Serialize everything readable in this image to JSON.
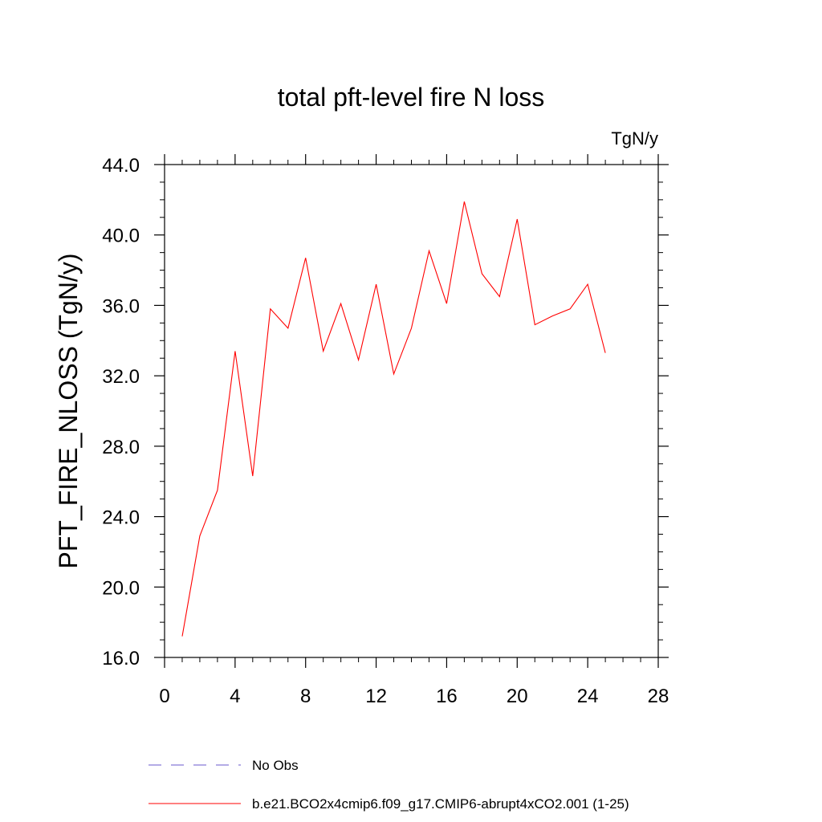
{
  "chart_data": {
    "type": "line",
    "title": "total pft-level fire N loss",
    "units": "TgN/y",
    "xlabel": "",
    "ylabel": "PFT_FIRE_NLOSS  (TgN/y)",
    "xlim": [
      0,
      28
    ],
    "ylim": [
      16,
      44
    ],
    "x_major_ticks": [
      0,
      4,
      8,
      12,
      16,
      20,
      24,
      28
    ],
    "x_tick_labels": [
      "0",
      "4",
      "8",
      "12",
      "16",
      "20",
      "24",
      "28"
    ],
    "y_major_ticks": [
      16,
      20,
      24,
      28,
      32,
      36,
      40,
      44
    ],
    "y_tick_labels": [
      "16.0",
      "20.0",
      "24.0",
      "28.0",
      "32.0",
      "36.0",
      "40.0",
      "44.0"
    ],
    "series": [
      {
        "name": "b.e21.BCO2x4cmip6.f09_g17.CMIP6-abrupt4xCO2.001 (1-25)",
        "color": "#ff0000",
        "x": [
          1,
          2,
          3,
          4,
          5,
          6,
          7,
          8,
          9,
          10,
          11,
          12,
          13,
          14,
          15,
          16,
          17,
          18,
          19,
          20,
          21,
          22,
          23,
          24,
          25
        ],
        "values": [
          17.2,
          22.9,
          25.5,
          33.4,
          26.3,
          35.8,
          34.7,
          38.7,
          33.4,
          36.1,
          32.9,
          37.2,
          32.1,
          34.7,
          39.1,
          36.1,
          41.9,
          37.8,
          36.5,
          40.9,
          34.9,
          35.4,
          35.8,
          37.2,
          33.3
        ]
      }
    ],
    "legend": [
      {
        "label": "No Obs",
        "color": "#6a5acd",
        "style": "dashed"
      },
      {
        "label": "b.e21.BCO2x4cmip6.f09_g17.CMIP6-abrupt4xCO2.001 (1-25)",
        "color": "#ff0000",
        "style": "solid"
      }
    ]
  }
}
